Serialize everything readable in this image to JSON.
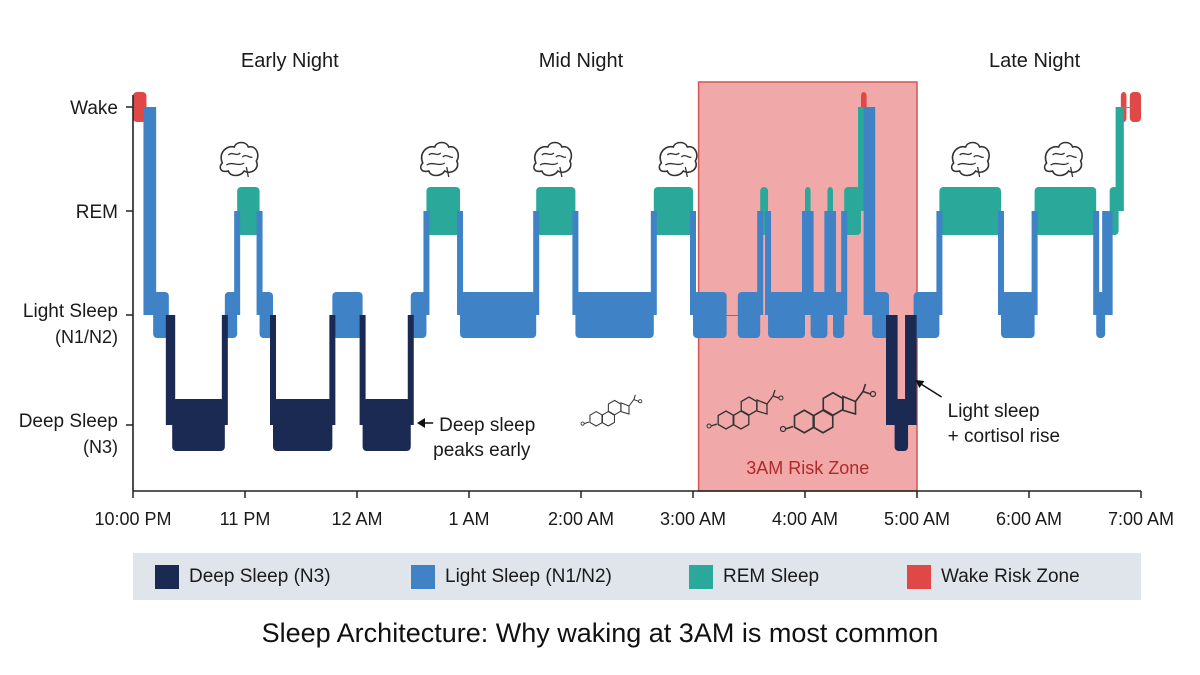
{
  "chart_data": {
    "type": "line",
    "title": "Sleep Architecture: Why waking at 3AM is most common",
    "colors": {
      "deep": "#1b2a52",
      "light": "#3f82c6",
      "rem": "#2aa89a",
      "wake": "#e04848",
      "risk_fill": "#f1a8a8",
      "risk_border": "#d35555"
    },
    "y_stages": [
      {
        "key": "wake",
        "label": "Wake",
        "sub": ""
      },
      {
        "key": "rem",
        "label": "REM",
        "sub": ""
      },
      {
        "key": "light",
        "label": "Light Sleep",
        "sub": "(N1/N2)"
      },
      {
        "key": "deep",
        "label": "Deep Sleep",
        "sub": "(N3)"
      }
    ],
    "x_ticks": [
      {
        "h": 0,
        "label": "10:00 PM"
      },
      {
        "h": 1,
        "label": "11 PM"
      },
      {
        "h": 2,
        "label": "12 AM"
      },
      {
        "h": 3,
        "label": "1 AM"
      },
      {
        "h": 4,
        "label": "2:00 AM"
      },
      {
        "h": 5,
        "label": "3:00 AM"
      },
      {
        "h": 6,
        "label": "4:00 AM"
      },
      {
        "h": 7,
        "label": "5:00 AM"
      },
      {
        "h": 8,
        "label": "6:00 AM"
      },
      {
        "h": 9,
        "label": "7:00 AM"
      }
    ],
    "x_range_hours": [
      0,
      9
    ],
    "sections": [
      {
        "label": "Early Night",
        "h": 1.4
      },
      {
        "label": "Mid Night",
        "h": 4.0
      },
      {
        "label": "Late Night",
        "h": 8.05
      }
    ],
    "risk_zone": {
      "start_h": 5.05,
      "end_h": 7.0,
      "label": "3AM Risk Zone"
    },
    "hypnogram": [
      {
        "stage": "wake",
        "start": 0.0,
        "end": 0.12
      },
      {
        "stage": "light",
        "start": 0.18,
        "end": 0.32
      },
      {
        "stage": "deep",
        "start": 0.35,
        "end": 0.82
      },
      {
        "stage": "light",
        "start": 0.82,
        "end": 0.93
      },
      {
        "stage": "rem",
        "start": 0.93,
        "end": 1.13
      },
      {
        "stage": "light",
        "start": 1.13,
        "end": 1.25
      },
      {
        "stage": "deep",
        "start": 1.25,
        "end": 1.78
      },
      {
        "stage": "light",
        "start": 1.78,
        "end": 2.05
      },
      {
        "stage": "deep",
        "start": 2.05,
        "end": 2.48
      },
      {
        "stage": "light",
        "start": 2.48,
        "end": 2.62
      },
      {
        "stage": "rem",
        "start": 2.62,
        "end": 2.92
      },
      {
        "stage": "light",
        "start": 2.92,
        "end": 3.6
      },
      {
        "stage": "rem",
        "start": 3.6,
        "end": 3.95
      },
      {
        "stage": "light",
        "start": 3.95,
        "end": 4.65
      },
      {
        "stage": "rem",
        "start": 4.65,
        "end": 5.0
      },
      {
        "stage": "light",
        "start": 5.0,
        "end": 5.3
      },
      {
        "stage": "light",
        "start": 5.4,
        "end": 5.6
      },
      {
        "stage": "rem",
        "start": 5.6,
        "end": 5.67
      },
      {
        "stage": "light",
        "start": 5.67,
        "end": 6.0
      },
      {
        "stage": "rem",
        "start": 6.0,
        "end": 6.05
      },
      {
        "stage": "light",
        "start": 6.05,
        "end": 6.2
      },
      {
        "stage": "rem",
        "start": 6.2,
        "end": 6.25
      },
      {
        "stage": "light",
        "start": 6.25,
        "end": 6.35
      },
      {
        "stage": "rem",
        "start": 6.35,
        "end": 6.5
      },
      {
        "stage": "wake",
        "start": 6.5,
        "end": 6.55
      },
      {
        "stage": "light",
        "start": 6.6,
        "end": 6.75
      },
      {
        "stage": "deep",
        "start": 6.8,
        "end": 6.92
      },
      {
        "stage": "light",
        "start": 6.97,
        "end": 7.2
      },
      {
        "stage": "rem",
        "start": 7.2,
        "end": 7.75
      },
      {
        "stage": "light",
        "start": 7.75,
        "end": 8.05
      },
      {
        "stage": "rem",
        "start": 8.05,
        "end": 8.6
      },
      {
        "stage": "light",
        "start": 8.6,
        "end": 8.68
      },
      {
        "stage": "rem",
        "start": 8.72,
        "end": 8.8
      },
      {
        "stage": "wake",
        "start": 8.82,
        "end": 8.87
      },
      {
        "stage": "wake",
        "start": 8.9,
        "end": 9.0
      }
    ],
    "rem_icons_h": [
      0.94,
      2.73,
      3.74,
      4.86,
      7.47,
      8.3
    ],
    "hormone_icons": [
      {
        "h": 4.3,
        "y_stage_offset": 0.55,
        "scale": 0.8
      },
      {
        "h": 5.5,
        "y_stage_offset": 0.55,
        "scale": 1.0
      },
      {
        "h": 6.25,
        "y_stage_offset": 0.55,
        "scale": 1.25
      }
    ],
    "annotations": [
      {
        "lines": [
          "Deep sleep",
          "peaks early"
        ],
        "arrow_from_h": 2.68,
        "arrow_to_h": 2.5
      },
      {
        "lines": [
          "Light sleep",
          "+ cortisol rise"
        ],
        "arrow_from_h": 7.22,
        "arrow_to_h": 6.95
      }
    ],
    "legend": [
      {
        "key": "deep",
        "label": "Deep Sleep (N3)"
      },
      {
        "key": "light",
        "label": "Light Sleep (N1/N2)"
      },
      {
        "key": "rem",
        "label": "REM Sleep"
      },
      {
        "key": "wake",
        "label": "Wake Risk Zone"
      }
    ]
  }
}
